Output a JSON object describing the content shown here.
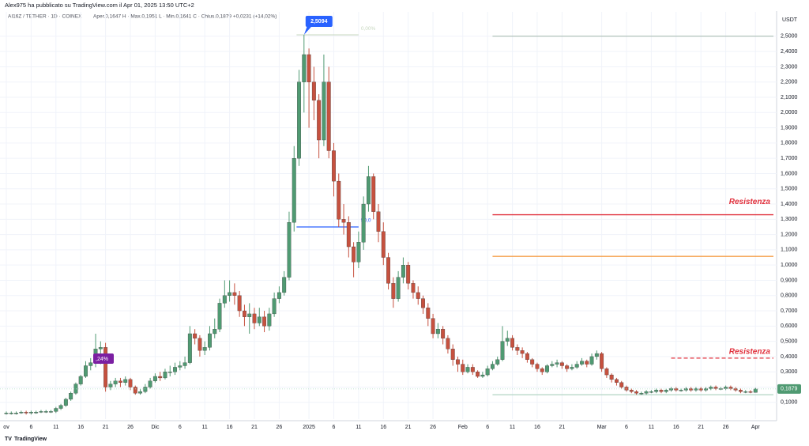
{
  "chart_data": {
    "type": "candlestick",
    "header": "Alex975 ha pubblicato su TradingView.com il Apr 01, 2025 13:50 UTC+2",
    "title": "AI16Z / TETHER · 1D · COINEX",
    "ohlc_text": "Aper.0,1647 H · Max.0,1951 L · Min.0,1641 C · Chius.0,1879 +0,0231 (+14,02%)",
    "y_axis_title": "USDT",
    "brand": "TradingView",
    "categories": [
      "ov",
      null,
      null,
      null,
      null,
      "6",
      null,
      null,
      null,
      null,
      "11",
      null,
      null,
      null,
      null,
      "16",
      null,
      null,
      null,
      null,
      "21",
      null,
      null,
      null,
      null,
      "26",
      null,
      null,
      null,
      null,
      "Dic",
      null,
      null,
      null,
      null,
      "6",
      null,
      null,
      null,
      null,
      "11",
      null,
      null,
      null,
      null,
      "16",
      null,
      null,
      null,
      null,
      "21",
      null,
      null,
      null,
      null,
      "26",
      null,
      null,
      null,
      null,
      null,
      "2025",
      null,
      null,
      null,
      null,
      "6",
      null,
      null,
      null,
      null,
      "11",
      null,
      null,
      null,
      null,
      "16",
      null,
      null,
      null,
      null,
      "21",
      null,
      null,
      null,
      null,
      "26",
      null,
      null,
      null,
      null,
      null,
      "Feb",
      null,
      null,
      null,
      null,
      "6",
      null,
      null,
      null,
      null,
      "11",
      null,
      null,
      null,
      null,
      "16",
      null,
      null,
      null,
      null,
      "21",
      null,
      null,
      null,
      null,
      null,
      null,
      null,
      "Mar",
      null,
      null,
      null,
      null,
      "6",
      null,
      null,
      null,
      null,
      "11",
      null,
      null,
      null,
      null,
      "16",
      null,
      null,
      null,
      null,
      "21",
      null,
      null,
      null,
      null,
      "26",
      null,
      null,
      null,
      null,
      null,
      "Apr"
    ],
    "open": [
      0.03,
      0.03,
      0.03,
      0.03,
      0.035,
      0.03,
      0.035,
      0.035,
      0.04,
      0.04,
      0.04,
      0.06,
      0.08,
      0.12,
      0.16,
      0.22,
      0.27,
      0.34,
      0.36,
      0.45,
      0.46,
      0.2,
      0.22,
      0.24,
      0.23,
      0.25,
      0.2,
      0.16,
      0.17,
      0.2,
      0.24,
      0.27,
      0.26,
      0.3,
      0.3,
      0.33,
      0.34,
      0.36,
      0.55,
      0.52,
      0.44,
      0.46,
      0.55,
      0.58,
      0.75,
      0.8,
      0.82,
      0.8,
      0.7,
      0.66,
      0.68,
      0.62,
      0.66,
      0.6,
      0.68,
      0.78,
      0.82,
      0.92,
      1.28,
      1.7,
      2.2,
      2.38,
      2.2,
      2.08,
      1.82,
      2.2,
      1.75,
      1.55,
      1.3,
      1.28,
      1.12,
      1.02,
      1.15,
      1.4,
      1.58,
      1.35,
      1.22,
      1.05,
      0.88,
      0.78,
      0.92,
      1.0,
      0.88,
      0.82,
      0.78,
      0.72,
      0.65,
      0.55,
      0.58,
      0.52,
      0.45,
      0.38,
      0.35,
      0.3,
      0.33,
      0.3,
      0.27,
      0.28,
      0.32,
      0.35,
      0.38,
      0.5,
      0.52,
      0.46,
      0.44,
      0.42,
      0.38,
      0.35,
      0.32,
      0.3,
      0.34,
      0.35,
      0.36,
      0.34,
      0.32,
      0.33,
      0.35,
      0.37,
      0.35,
      0.4,
      0.42,
      0.32,
      0.28,
      0.25,
      0.23,
      0.2,
      0.18,
      0.17,
      0.16,
      0.16,
      0.17,
      0.17,
      0.18,
      0.17,
      0.18,
      0.19,
      0.18,
      0.18,
      0.19,
      0.18,
      0.19,
      0.18,
      0.19,
      0.2,
      0.19,
      0.19,
      0.2,
      0.19,
      0.18,
      0.17,
      0.17,
      0.1647
    ],
    "high": [
      0.04,
      0.04,
      0.04,
      0.045,
      0.045,
      0.045,
      0.045,
      0.05,
      0.05,
      0.05,
      0.07,
      0.09,
      0.13,
      0.17,
      0.23,
      0.28,
      0.37,
      0.39,
      0.55,
      0.5,
      0.49,
      0.24,
      0.26,
      0.26,
      0.27,
      0.26,
      0.21,
      0.19,
      0.22,
      0.26,
      0.29,
      0.3,
      0.32,
      0.34,
      0.36,
      0.37,
      0.4,
      0.6,
      0.58,
      0.54,
      0.5,
      0.6,
      0.65,
      0.78,
      0.9,
      0.9,
      0.88,
      0.83,
      0.74,
      0.75,
      0.72,
      0.72,
      0.7,
      0.72,
      0.82,
      0.86,
      0.96,
      1.35,
      1.78,
      2.28,
      2.5094,
      2.42,
      2.3,
      2.12,
      2.38,
      2.3,
      1.8,
      1.6,
      1.4,
      1.32,
      1.15,
      1.22,
      1.45,
      1.65,
      1.6,
      1.4,
      1.28,
      1.08,
      0.92,
      0.96,
      1.05,
      1.02,
      0.9,
      0.86,
      0.8,
      0.75,
      0.68,
      0.62,
      0.6,
      0.54,
      0.48,
      0.4,
      0.38,
      0.35,
      0.35,
      0.31,
      0.3,
      0.34,
      0.37,
      0.4,
      0.6,
      0.57,
      0.54,
      0.48,
      0.46,
      0.43,
      0.39,
      0.36,
      0.33,
      0.35,
      0.37,
      0.38,
      0.37,
      0.35,
      0.35,
      0.37,
      0.39,
      0.38,
      0.42,
      0.44,
      0.43,
      0.33,
      0.29,
      0.26,
      0.24,
      0.21,
      0.19,
      0.18,
      0.17,
      0.18,
      0.18,
      0.19,
      0.19,
      0.19,
      0.2,
      0.2,
      0.19,
      0.2,
      0.2,
      0.2,
      0.2,
      0.2,
      0.21,
      0.21,
      0.2,
      0.21,
      0.21,
      0.2,
      0.19,
      0.18,
      0.18,
      0.1951
    ],
    "low": [
      0.02,
      0.02,
      0.02,
      0.025,
      0.02,
      0.02,
      0.025,
      0.03,
      0.03,
      0.03,
      0.03,
      0.05,
      0.07,
      0.11,
      0.15,
      0.21,
      0.26,
      0.31,
      0.33,
      0.35,
      0.17,
      0.18,
      0.2,
      0.2,
      0.21,
      0.18,
      0.15,
      0.15,
      0.16,
      0.19,
      0.23,
      0.24,
      0.25,
      0.27,
      0.28,
      0.31,
      0.32,
      0.35,
      0.48,
      0.4,
      0.41,
      0.44,
      0.52,
      0.56,
      0.72,
      0.76,
      0.74,
      0.66,
      0.6,
      0.55,
      0.58,
      0.6,
      0.56,
      0.57,
      0.66,
      0.75,
      0.8,
      0.9,
      1.22,
      1.65,
      2.0,
      1.9,
      1.95,
      1.7,
      1.78,
      1.7,
      1.45,
      1.25,
      1.2,
      1.05,
      0.92,
      0.98,
      1.1,
      1.35,
      1.3,
      1.15,
      1.0,
      0.84,
      0.72,
      0.76,
      0.88,
      0.84,
      0.78,
      0.74,
      0.68,
      0.6,
      0.52,
      0.52,
      0.48,
      0.42,
      0.34,
      0.3,
      0.28,
      0.29,
      0.28,
      0.26,
      0.26,
      0.27,
      0.31,
      0.34,
      0.37,
      0.47,
      0.44,
      0.41,
      0.39,
      0.36,
      0.33,
      0.3,
      0.28,
      0.29,
      0.33,
      0.33,
      0.32,
      0.3,
      0.31,
      0.32,
      0.34,
      0.33,
      0.34,
      0.38,
      0.3,
      0.26,
      0.23,
      0.21,
      0.19,
      0.17,
      0.16,
      0.15,
      0.15,
      0.15,
      0.16,
      0.16,
      0.16,
      0.16,
      0.17,
      0.17,
      0.17,
      0.17,
      0.17,
      0.17,
      0.17,
      0.17,
      0.18,
      0.18,
      0.18,
      0.18,
      0.18,
      0.17,
      0.16,
      0.16,
      0.16,
      0.1641
    ],
    "close": [
      0.03,
      0.03,
      0.03,
      0.035,
      0.03,
      0.035,
      0.035,
      0.04,
      0.04,
      0.04,
      0.06,
      0.08,
      0.12,
      0.16,
      0.22,
      0.27,
      0.34,
      0.36,
      0.45,
      0.46,
      0.2,
      0.22,
      0.24,
      0.23,
      0.25,
      0.2,
      0.16,
      0.17,
      0.2,
      0.24,
      0.27,
      0.26,
      0.3,
      0.3,
      0.33,
      0.34,
      0.36,
      0.55,
      0.52,
      0.44,
      0.46,
      0.55,
      0.58,
      0.75,
      0.8,
      0.82,
      0.8,
      0.7,
      0.66,
      0.68,
      0.62,
      0.66,
      0.6,
      0.68,
      0.78,
      0.82,
      0.92,
      1.28,
      1.7,
      2.2,
      2.38,
      2.2,
      2.08,
      1.82,
      2.2,
      1.75,
      1.55,
      1.3,
      1.28,
      1.12,
      1.02,
      1.15,
      1.4,
      1.58,
      1.35,
      1.22,
      1.05,
      0.88,
      0.78,
      0.92,
      1.0,
      0.88,
      0.82,
      0.78,
      0.72,
      0.65,
      0.55,
      0.58,
      0.52,
      0.45,
      0.38,
      0.35,
      0.3,
      0.33,
      0.3,
      0.27,
      0.28,
      0.32,
      0.35,
      0.38,
      0.5,
      0.52,
      0.46,
      0.44,
      0.42,
      0.38,
      0.35,
      0.32,
      0.3,
      0.34,
      0.35,
      0.36,
      0.34,
      0.32,
      0.33,
      0.35,
      0.37,
      0.35,
      0.4,
      0.42,
      0.32,
      0.28,
      0.25,
      0.23,
      0.2,
      0.18,
      0.17,
      0.16,
      0.16,
      0.17,
      0.17,
      0.18,
      0.17,
      0.18,
      0.19,
      0.18,
      0.18,
      0.19,
      0.18,
      0.19,
      0.18,
      0.19,
      0.2,
      0.19,
      0.19,
      0.2,
      0.19,
      0.18,
      0.17,
      0.17,
      0.1647,
      0.1879
    ],
    "colors": {
      "up": "#4f9a72",
      "down": "#c6513f"
    },
    "ylim": [
      -0.01,
      2.66
    ],
    "yticks": [
      {
        "value": 0.1,
        "label": "0,1000"
      },
      {
        "value": 0.2,
        "label": "0,2000"
      },
      {
        "value": 0.3,
        "label": "0,3000"
      },
      {
        "value": 0.4,
        "label": "0,4000"
      },
      {
        "value": 0.5,
        "label": "0,5000"
      },
      {
        "value": 0.6,
        "label": "0,6000"
      },
      {
        "value": 0.7,
        "label": "0,7000"
      },
      {
        "value": 0.8,
        "label": "0,8000"
      },
      {
        "value": 0.9,
        "label": "0,9000"
      },
      {
        "value": 1.0,
        "label": "1,0000"
      },
      {
        "value": 1.1,
        "label": "1,1000"
      },
      {
        "value": 1.2,
        "label": "1,2000"
      },
      {
        "value": 1.3,
        "label": "1,3000"
      },
      {
        "value": 1.4,
        "label": "1,4000"
      },
      {
        "value": 1.5,
        "label": "1,5000"
      },
      {
        "value": 1.6,
        "label": "1,6000"
      },
      {
        "value": 1.7,
        "label": "1,7000"
      },
      {
        "value": 1.8,
        "label": "1,8000"
      },
      {
        "value": 1.9,
        "label": "1,9000"
      },
      {
        "value": 2.0,
        "label": "2,0000"
      },
      {
        "value": 2.1,
        "label": "2,1000"
      },
      {
        "value": 2.2,
        "label": "2,2000"
      },
      {
        "value": 2.3,
        "label": "2,3000"
      },
      {
        "value": 2.4,
        "label": "2,4000"
      },
      {
        "value": 2.5,
        "label": "2,5000"
      }
    ],
    "grid": true,
    "levels": [
      {
        "value": 1.33,
        "color": "#e0303c",
        "label": "Resistenza"
      },
      {
        "value": 1.057,
        "color": "#f5a04d"
      },
      {
        "value": 0.39,
        "color": "#e0303c",
        "dashed": true,
        "label": "Resistenza"
      },
      {
        "value": 2.5,
        "color": "#b8c7c0"
      },
      {
        "value": 0.15,
        "color": "#b8d8c8"
      }
    ],
    "fib": [
      {
        "value": 2.5094,
        "label": "0,00%",
        "color": "#c8d8c0"
      },
      {
        "value": 1.25,
        "label": "50,0",
        "color": "#2962ff"
      }
    ],
    "peak_label": {
      "value": 2.5094,
      "label": "2,5094"
    },
    "last_label": {
      "value": 0.1879,
      "label": "0,1879"
    },
    "note_label": ",24%"
  }
}
